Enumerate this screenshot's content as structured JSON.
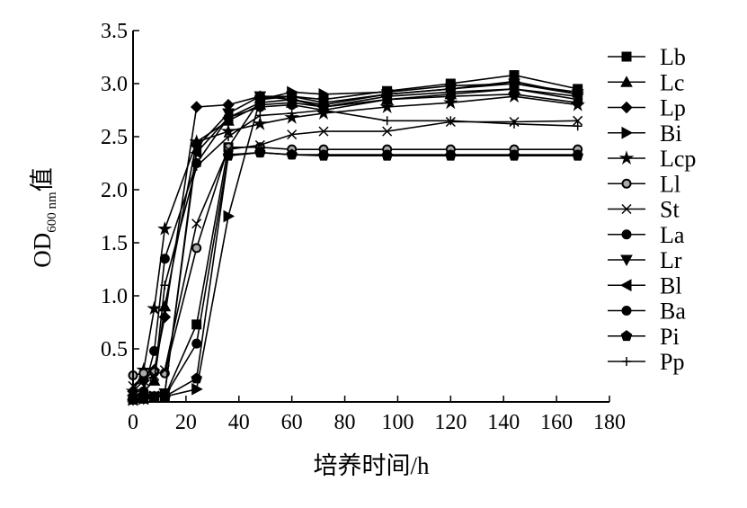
{
  "chart_data": {
    "type": "line",
    "title": "",
    "xlabel": "培养时间/h",
    "ylabel": {
      "main": "OD",
      "subscript": "600 nm",
      "suffix": "值"
    },
    "xlim": [
      0,
      180
    ],
    "ylim": [
      0,
      3.5
    ],
    "xticks": [
      "0",
      "20",
      "40",
      "60",
      "80",
      "100",
      "120",
      "140",
      "160",
      "180"
    ],
    "yticks": [
      "0.5",
      "1.0",
      "1.5",
      "2.0",
      "2.5",
      "3.0",
      "3.5"
    ],
    "grid": false,
    "legend_position": "right",
    "x": [
      0,
      4,
      8,
      12,
      24,
      36,
      48,
      60,
      72,
      96,
      120,
      144,
      168
    ],
    "series": [
      {
        "name": "Lb",
        "marker": "square",
        "values": [
          0.03,
          0.03,
          0.05,
          0.05,
          0.73,
          2.4,
          2.85,
          2.88,
          2.85,
          2.93,
          3.0,
          3.08,
          2.95
        ]
      },
      {
        "name": "Lc",
        "marker": "triangle-up",
        "values": [
          0.05,
          0.1,
          0.2,
          0.9,
          2.45,
          2.65,
          2.8,
          2.82,
          2.78,
          2.85,
          2.9,
          2.95,
          2.85
        ]
      },
      {
        "name": "Lp",
        "marker": "diamond",
        "values": [
          0.1,
          0.2,
          0.3,
          0.8,
          2.78,
          2.8,
          2.88,
          2.85,
          2.8,
          2.9,
          2.95,
          3.02,
          2.9
        ]
      },
      {
        "name": "Bi",
        "marker": "triangle-right",
        "values": [
          0.02,
          0.03,
          0.05,
          0.05,
          0.12,
          1.75,
          2.85,
          2.92,
          2.9,
          2.92,
          2.98,
          3.0,
          2.92
        ]
      },
      {
        "name": "Lcp",
        "marker": "star",
        "values": [
          0.1,
          0.3,
          0.88,
          1.63,
          2.45,
          2.55,
          2.62,
          2.68,
          2.72,
          2.78,
          2.82,
          2.88,
          2.8
        ]
      },
      {
        "name": "Ll",
        "marker": "circle-open",
        "values": [
          0.25,
          0.27,
          0.28,
          0.27,
          1.45,
          2.4,
          2.4,
          2.38,
          2.38,
          2.38,
          2.38,
          2.38,
          2.38
        ]
      },
      {
        "name": "St",
        "marker": "x",
        "values": [
          0.15,
          0.2,
          0.25,
          0.3,
          1.68,
          2.38,
          2.42,
          2.52,
          2.55,
          2.55,
          2.64,
          2.64,
          2.65
        ]
      },
      {
        "name": "La",
        "marker": "circle",
        "values": [
          0.05,
          0.1,
          0.48,
          1.35,
          2.25,
          2.68,
          2.78,
          2.8,
          2.75,
          2.85,
          2.88,
          2.9,
          2.82
        ]
      },
      {
        "name": "Lr",
        "marker": "triangle-down",
        "values": [
          0.02,
          0.03,
          0.05,
          0.08,
          2.4,
          2.72,
          2.88,
          2.88,
          2.82,
          2.9,
          2.95,
          3.0,
          2.9
        ]
      },
      {
        "name": "Bl",
        "marker": "triangle-left",
        "values": [
          0.02,
          0.03,
          0.05,
          0.08,
          2.35,
          2.68,
          2.82,
          2.85,
          2.78,
          2.88,
          2.92,
          2.95,
          2.88
        ]
      },
      {
        "name": "Ba",
        "marker": "circle",
        "values": [
          0.02,
          0.03,
          0.05,
          0.05,
          0.55,
          2.33,
          2.35,
          2.33,
          2.33,
          2.33,
          2.33,
          2.33,
          2.33
        ]
      },
      {
        "name": "Pi",
        "marker": "pentagon",
        "values": [
          0.02,
          0.03,
          0.05,
          0.05,
          0.22,
          2.32,
          2.35,
          2.33,
          2.32,
          2.32,
          2.32,
          2.32,
          2.32
        ]
      },
      {
        "name": "Pp",
        "marker": "plus",
        "values": [
          0.05,
          0.1,
          0.2,
          1.1,
          2.22,
          2.5,
          2.7,
          2.72,
          2.75,
          2.65,
          2.65,
          2.62,
          2.6
        ]
      }
    ]
  }
}
